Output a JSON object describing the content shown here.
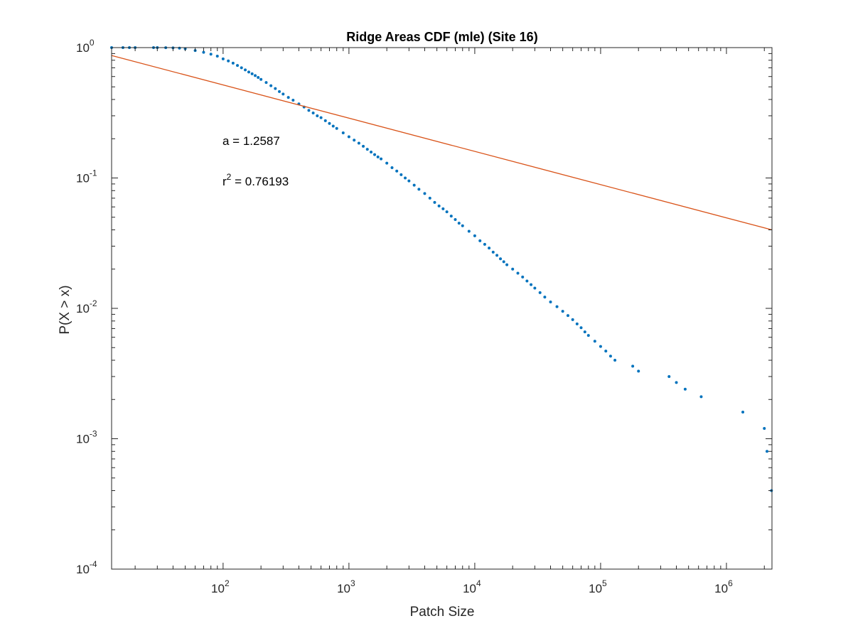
{
  "chart_data": {
    "type": "scatter",
    "title": "Ridge Areas CDF (mle) (Site 16)",
    "xlabel": "Patch Size",
    "ylabel": "P(X > x)",
    "xscale": "log",
    "yscale": "log",
    "xlim": [
      13,
      2300000
    ],
    "ylim": [
      0.0001,
      1
    ],
    "x_ticks": [
      {
        "base": "10",
        "exp": "2"
      },
      {
        "base": "10",
        "exp": "3"
      },
      {
        "base": "10",
        "exp": "4"
      },
      {
        "base": "10",
        "exp": "5"
      },
      {
        "base": "10",
        "exp": "6"
      }
    ],
    "y_ticks": [
      {
        "base": "10",
        "exp": "0"
      },
      {
        "base": "10",
        "exp": "-1"
      },
      {
        "base": "10",
        "exp": "-2"
      },
      {
        "base": "10",
        "exp": "-3"
      },
      {
        "base": "10",
        "exp": "-4"
      }
    ],
    "grid": false,
    "box": true,
    "annotations": {
      "a_text": "a = 1.2587",
      "r2_prefix": "r",
      "r2_exp": "2",
      "r2_value": " = 0.76193"
    },
    "series": [
      {
        "kind": "points",
        "color": "#0072BD",
        "x": [
          13,
          16,
          18,
          20,
          28,
          30,
          35,
          40,
          45,
          50,
          60,
          70,
          80,
          90,
          100,
          110,
          120,
          130,
          140,
          150,
          160,
          170,
          180,
          190,
          200,
          220,
          240,
          260,
          280,
          300,
          330,
          360,
          400,
          440,
          480,
          520,
          560,
          600,
          650,
          700,
          750,
          800,
          900,
          1000,
          1100,
          1200,
          1300,
          1400,
          1500,
          1600,
          1700,
          1800,
          2000,
          2200,
          2400,
          2600,
          2800,
          3000,
          3300,
          3600,
          4000,
          4400,
          4800,
          5200,
          5600,
          6000,
          6500,
          7000,
          7500,
          8000,
          9000,
          10000,
          11000,
          12000,
          13000,
          14000,
          15000,
          16000,
          17000,
          18000,
          20000,
          22000,
          24000,
          26000,
          28000,
          30000,
          33000,
          36000,
          40000,
          45000,
          50000,
          55000,
          60000,
          65000,
          70000,
          75000,
          80000,
          90000,
          100000,
          110000,
          120000,
          130000,
          180000,
          200000,
          350000,
          400000,
          470000,
          630000,
          1350000,
          2000000,
          2100000,
          2280000
        ],
        "y": [
          1.0,
          1.0,
          1.0,
          1.0,
          1.0,
          1.0,
          0.998,
          0.995,
          0.99,
          0.98,
          0.95,
          0.92,
          0.89,
          0.86,
          0.82,
          0.79,
          0.76,
          0.73,
          0.7,
          0.675,
          0.65,
          0.63,
          0.61,
          0.59,
          0.57,
          0.54,
          0.51,
          0.485,
          0.46,
          0.44,
          0.415,
          0.395,
          0.37,
          0.35,
          0.33,
          0.315,
          0.3,
          0.29,
          0.275,
          0.262,
          0.25,
          0.24,
          0.222,
          0.207,
          0.195,
          0.185,
          0.175,
          0.166,
          0.158,
          0.151,
          0.145,
          0.14,
          0.13,
          0.12,
          0.113,
          0.106,
          0.1,
          0.095,
          0.088,
          0.082,
          0.076,
          0.07,
          0.065,
          0.061,
          0.058,
          0.055,
          0.051,
          0.048,
          0.045,
          0.043,
          0.039,
          0.036,
          0.033,
          0.031,
          0.029,
          0.027,
          0.0255,
          0.024,
          0.0228,
          0.0216,
          0.02,
          0.0186,
          0.0174,
          0.0162,
          0.0152,
          0.0143,
          0.0132,
          0.0122,
          0.0112,
          0.0103,
          0.0095,
          0.0088,
          0.0082,
          0.0076,
          0.0071,
          0.0066,
          0.0062,
          0.0056,
          0.0051,
          0.0047,
          0.0043,
          0.004,
          0.0036,
          0.0033,
          0.003,
          0.0027,
          0.0024,
          0.0021,
          0.0016,
          0.0012,
          0.0008,
          0.0004
        ]
      },
      {
        "kind": "line",
        "color": "#D95319",
        "x": [
          13,
          2300000
        ],
        "y": [
          0.87,
          0.04
        ]
      }
    ]
  }
}
